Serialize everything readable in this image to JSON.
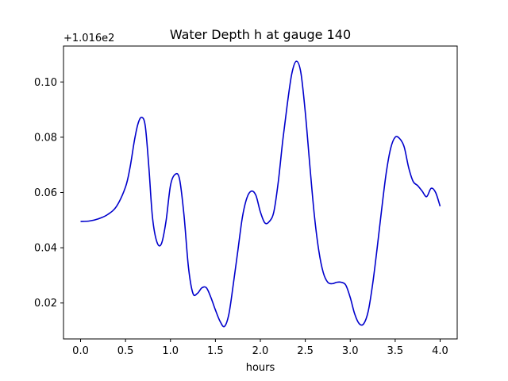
{
  "chart_data": {
    "type": "line",
    "title": "Water Depth h at gauge 140",
    "xlabel": "hours",
    "ylabel": "",
    "offset_label": "+1.016e2",
    "xlim": [
      -0.19,
      4.19
    ],
    "ylim": [
      0.007,
      0.113
    ],
    "xticks": [
      0.0,
      0.5,
      1.0,
      1.5,
      2.0,
      2.5,
      3.0,
      3.5,
      4.0
    ],
    "xtick_labels": [
      "0.0",
      "0.5",
      "1.0",
      "1.5",
      "2.0",
      "2.5",
      "3.0",
      "3.5",
      "4.0"
    ],
    "yticks": [
      0.02,
      0.04,
      0.06,
      0.08,
      0.1
    ],
    "ytick_labels": [
      "0.02",
      "0.04",
      "0.06",
      "0.08",
      "0.10"
    ],
    "grid": false,
    "series": [
      {
        "color": "#0000cc",
        "x": [
          0.0,
          0.1,
          0.2,
          0.3,
          0.4,
          0.5,
          0.55,
          0.6,
          0.64,
          0.68,
          0.72,
          0.76,
          0.8,
          0.85,
          0.9,
          0.95,
          1.0,
          1.05,
          1.1,
          1.15,
          1.2,
          1.25,
          1.3,
          1.35,
          1.4,
          1.45,
          1.5,
          1.55,
          1.6,
          1.65,
          1.7,
          1.75,
          1.8,
          1.85,
          1.9,
          1.95,
          2.0,
          2.05,
          2.1,
          2.15,
          2.2,
          2.25,
          2.3,
          2.35,
          2.4,
          2.45,
          2.5,
          2.55,
          2.6,
          2.65,
          2.7,
          2.75,
          2.8,
          2.85,
          2.9,
          2.95,
          3.0,
          3.05,
          3.1,
          3.15,
          3.2,
          3.25,
          3.3,
          3.35,
          3.4,
          3.45,
          3.5,
          3.55,
          3.6,
          3.65,
          3.7,
          3.75,
          3.8,
          3.85,
          3.9,
          3.95,
          4.0
        ],
        "y": [
          0.0495,
          0.0497,
          0.0505,
          0.052,
          0.055,
          0.062,
          0.069,
          0.079,
          0.085,
          0.0872,
          0.084,
          0.069,
          0.051,
          0.042,
          0.0415,
          0.0495,
          0.0625,
          0.0665,
          0.065,
          0.052,
          0.033,
          0.0235,
          0.0235,
          0.0255,
          0.0255,
          0.022,
          0.0175,
          0.0135,
          0.0115,
          0.016,
          0.027,
          0.039,
          0.051,
          0.058,
          0.0605,
          0.059,
          0.053,
          0.049,
          0.0495,
          0.053,
          0.064,
          0.079,
          0.092,
          0.103,
          0.1075,
          0.1035,
          0.089,
          0.07,
          0.052,
          0.039,
          0.031,
          0.0275,
          0.027,
          0.0275,
          0.0275,
          0.0265,
          0.022,
          0.016,
          0.0125,
          0.0125,
          0.017,
          0.027,
          0.04,
          0.054,
          0.067,
          0.076,
          0.08,
          0.0795,
          0.0765,
          0.069,
          0.064,
          0.0625,
          0.0605,
          0.0585,
          0.0615,
          0.06,
          0.055
        ]
      }
    ]
  }
}
